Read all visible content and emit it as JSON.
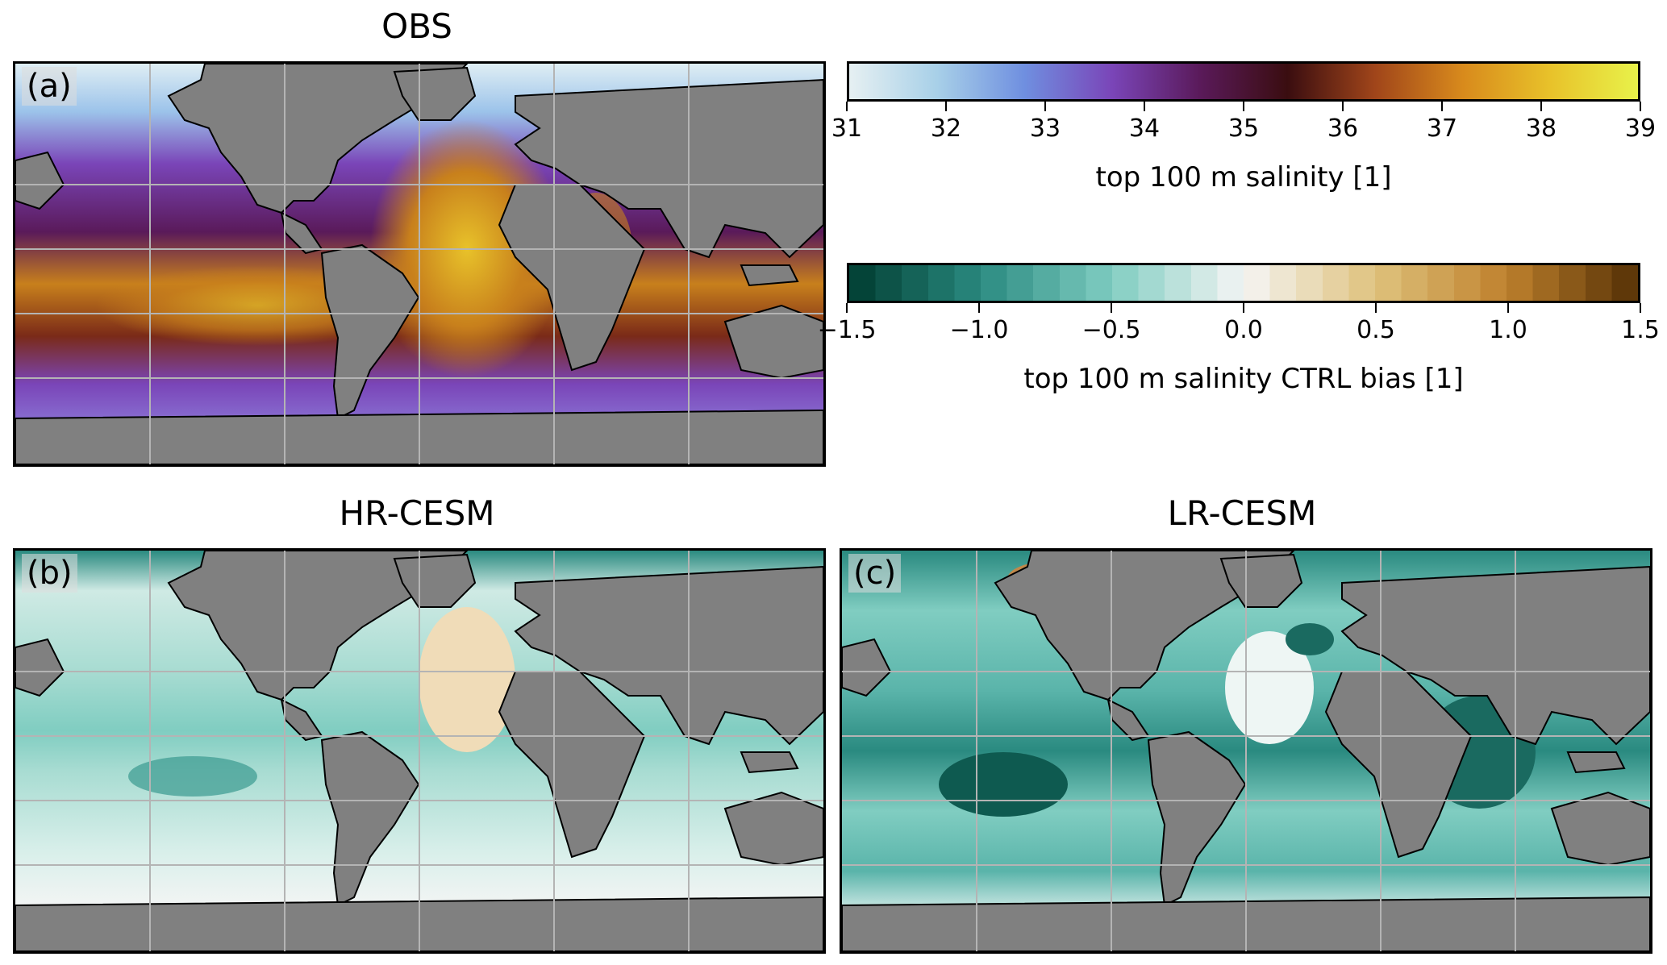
{
  "panels": {
    "a": {
      "title": "OBS",
      "label": "(a)"
    },
    "b": {
      "title": "HR-CESM",
      "label": "(b)"
    },
    "c": {
      "title": "LR-CESM",
      "label": "(c)"
    }
  },
  "colorbar_salinity": {
    "ticks": [
      "31",
      "32",
      "33",
      "34",
      "35",
      "36",
      "37",
      "38",
      "39"
    ],
    "label": "top 100 m salinity  [1]",
    "range": [
      31,
      39
    ]
  },
  "colorbar_bias": {
    "ticks": [
      "−1.5",
      "−1.0",
      "−0.5",
      "0.0",
      "0.5",
      "1.0",
      "1.5"
    ],
    "label": "top 100 m salinity CTRL bias  [1]",
    "range": [
      -1.5,
      1.5
    ]
  },
  "colors": {
    "land": "#808080",
    "grid": "#b4b4b4",
    "salinity_stops": [
      "#e6f0f2",
      "#a8d0e8",
      "#6f8fe0",
      "#7a45b8",
      "#5a1a5a",
      "#3a0d10",
      "#a0451a",
      "#d88a1c",
      "#e8c22a",
      "#e8f24a"
    ],
    "bias_stops": [
      "#003c30",
      "#2a8a80",
      "#80cdc1",
      "#f5f5f5",
      "#dfc27d",
      "#bf812d",
      "#543005"
    ]
  }
}
